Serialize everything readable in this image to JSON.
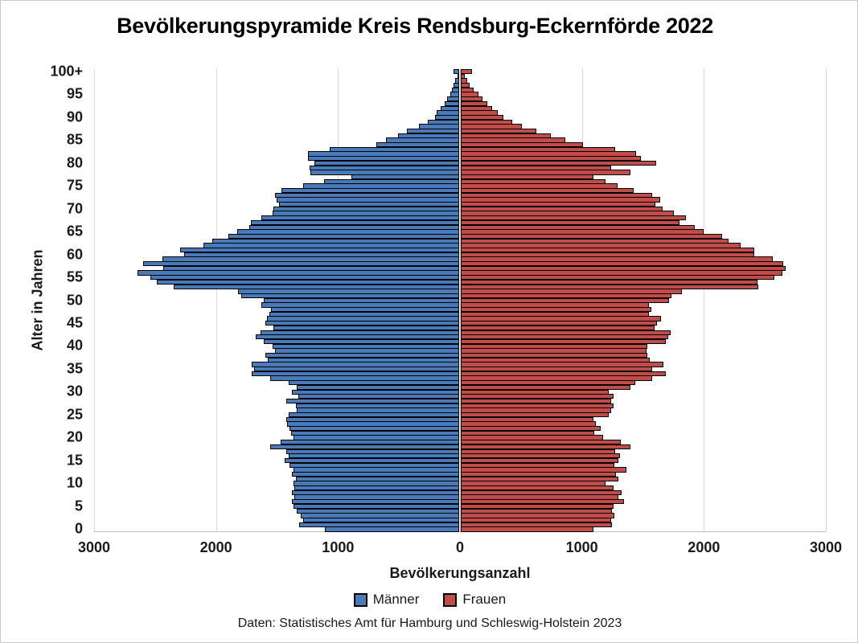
{
  "title": "Bevölkerungspyramide Kreis Rendsburg-Eckernförde 2022",
  "footer": "Daten: Statistisches Amt für Hamburg und Schleswig-Holstein 2023",
  "x_axis": {
    "label": "Bevölkerungsanzahl",
    "tick_values": [
      -3000,
      -2000,
      -1000,
      0,
      1000,
      2000,
      3000
    ],
    "tick_labels": [
      "3000",
      "2000",
      "1000",
      "0",
      "1000",
      "2000",
      "3000"
    ]
  },
  "y_axis": {
    "label": "Alter in Jahren",
    "tick_ages": [
      0,
      5,
      10,
      15,
      20,
      25,
      30,
      35,
      40,
      45,
      50,
      55,
      60,
      65,
      70,
      75,
      80,
      85,
      90,
      95,
      100
    ],
    "tick_labels": [
      "0",
      "5",
      "10",
      "15",
      "20",
      "25",
      "30",
      "35",
      "40",
      "45",
      "50",
      "55",
      "60",
      "65",
      "70",
      "75",
      "80",
      "85",
      "90",
      "95",
      "100+"
    ]
  },
  "legend": [
    {
      "label": "Männer",
      "color": "#4a7ab7"
    },
    {
      "label": "Frauen",
      "color": "#c04d49"
    }
  ],
  "colors": {
    "male": "#4a7ab7",
    "female": "#c04d49",
    "bar_border": "#000000",
    "gridline": "#d9d9d9",
    "axis_line": "#bfbfbf"
  },
  "chart_data": {
    "type": "bar",
    "subtype": "population-pyramid",
    "title": "Bevölkerungspyramide Kreis Rendsburg-Eckernförde 2022",
    "xlabel": "Bevölkerungsanzahl",
    "ylabel": "Alter in Jahren",
    "xlim": [
      -3000,
      3000
    ],
    "grid": true,
    "legend_position": "bottom",
    "age_min": 0,
    "age_max_label": "100+",
    "series": [
      {
        "name": "Männer",
        "side": "left",
        "color": "#4a7ab7",
        "values": [
          1100,
          1310,
          1280,
          1300,
          1330,
          1360,
          1370,
          1350,
          1370,
          1350,
          1360,
          1340,
          1370,
          1360,
          1390,
          1430,
          1400,
          1420,
          1550,
          1465,
          1355,
          1375,
          1390,
          1410,
          1420,
          1400,
          1330,
          1340,
          1420,
          1320,
          1370,
          1330,
          1400,
          1550,
          1700,
          1680,
          1700,
          1570,
          1590,
          1510,
          1530,
          1600,
          1670,
          1630,
          1520,
          1590,
          1575,
          1555,
          1540,
          1625,
          1605,
          1790,
          1815,
          2340,
          2480,
          2535,
          2640,
          2425,
          2590,
          2430,
          2255,
          2285,
          2095,
          2025,
          1890,
          1820,
          1720,
          1705,
          1620,
          1530,
          1520,
          1480,
          1500,
          1510,
          1460,
          1280,
          1105,
          885,
          1220,
          1225,
          1185,
          1240,
          1240,
          1060,
          680,
          600,
          500,
          430,
          330,
          260,
          195,
          185,
          150,
          120,
          100,
          75,
          60,
          45,
          35,
          15,
          45
        ]
      },
      {
        "name": "Frauen",
        "side": "right",
        "color": "#c04d49",
        "values": [
          1090,
          1240,
          1230,
          1260,
          1240,
          1250,
          1340,
          1290,
          1320,
          1250,
          1190,
          1290,
          1270,
          1360,
          1260,
          1290,
          1305,
          1265,
          1390,
          1310,
          1165,
          1095,
          1150,
          1110,
          1090,
          1210,
          1230,
          1250,
          1230,
          1250,
          1210,
          1390,
          1430,
          1570,
          1680,
          1570,
          1660,
          1550,
          1530,
          1520,
          1530,
          1680,
          1700,
          1720,
          1590,
          1610,
          1645,
          1545,
          1565,
          1545,
          1710,
          1730,
          1815,
          2440,
          2430,
          2570,
          2640,
          2665,
          2645,
          2560,
          2405,
          2405,
          2295,
          2195,
          2140,
          1990,
          1920,
          1795,
          1845,
          1750,
          1655,
          1595,
          1635,
          1570,
          1415,
          1285,
          1190,
          1090,
          1390,
          1230,
          1600,
          1475,
          1435,
          1265,
          1005,
          860,
          740,
          620,
          500,
          420,
          350,
          300,
          255,
          215,
          175,
          145,
          105,
          75,
          50,
          35,
          90
        ]
      }
    ]
  }
}
